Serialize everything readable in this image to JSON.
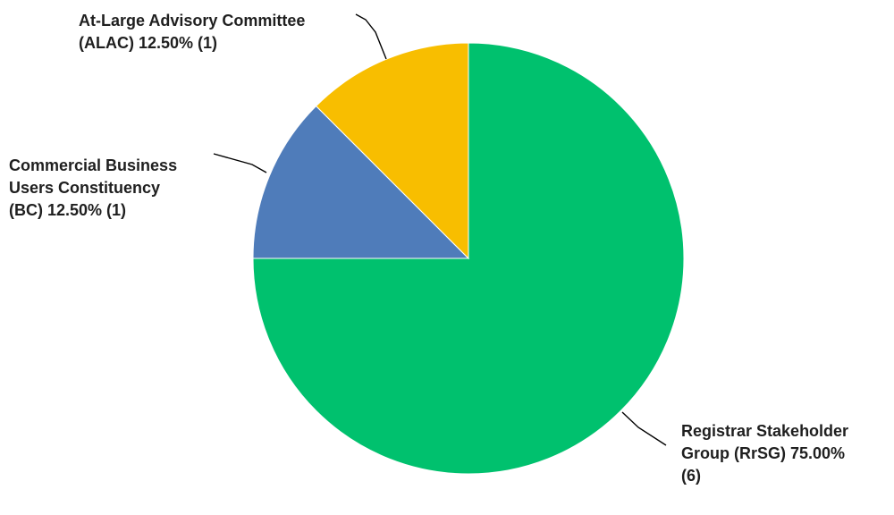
{
  "chart_data": {
    "type": "pie",
    "start": "top",
    "direction": "clockwise",
    "slices": [
      {
        "label": "Registrar Stakeholder Group (RrSG)",
        "percent": 75.0,
        "count": 6,
        "color": "#00c16e",
        "label_lines": [
          "Registrar Stakeholder",
          "Group (RrSG) 75.00%",
          "(6)"
        ]
      },
      {
        "label": "Commercial Business Users Constituency (BC)",
        "percent": 12.5,
        "count": 1,
        "color": "#4f7cba",
        "label_lines": [
          "Commercial Business",
          "Users Constituency",
          "(BC) 12.50% (1)"
        ]
      },
      {
        "label": "At-Large Advisory Committee (ALAC)",
        "percent": 12.5,
        "count": 1,
        "color": "#f8be00",
        "label_lines": [
          "At-Large Advisory Committee",
          "(ALAC) 12.50% (1)"
        ]
      }
    ]
  }
}
